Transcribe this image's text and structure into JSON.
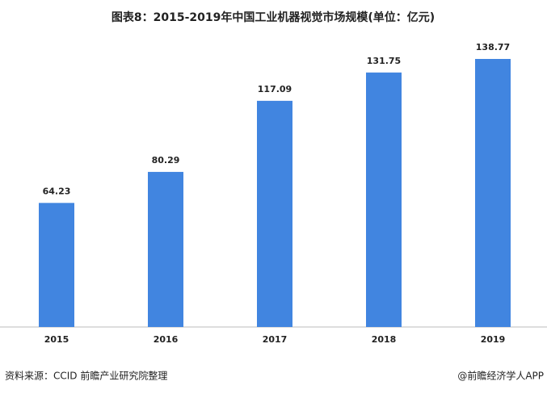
{
  "chart_data": {
    "type": "bar",
    "title": "图表8：2015-2019年中国工业机器视觉市场规模(单位：亿元)",
    "categories": [
      "2015",
      "2016",
      "2017",
      "2018",
      "2019"
    ],
    "values": [
      64.23,
      80.29,
      117.09,
      131.75,
      138.77
    ],
    "color": "#4185e0",
    "source": "资料来源：CCID 前瞻产业研究院整理",
    "credit": "@前瞻经济学人APP"
  }
}
